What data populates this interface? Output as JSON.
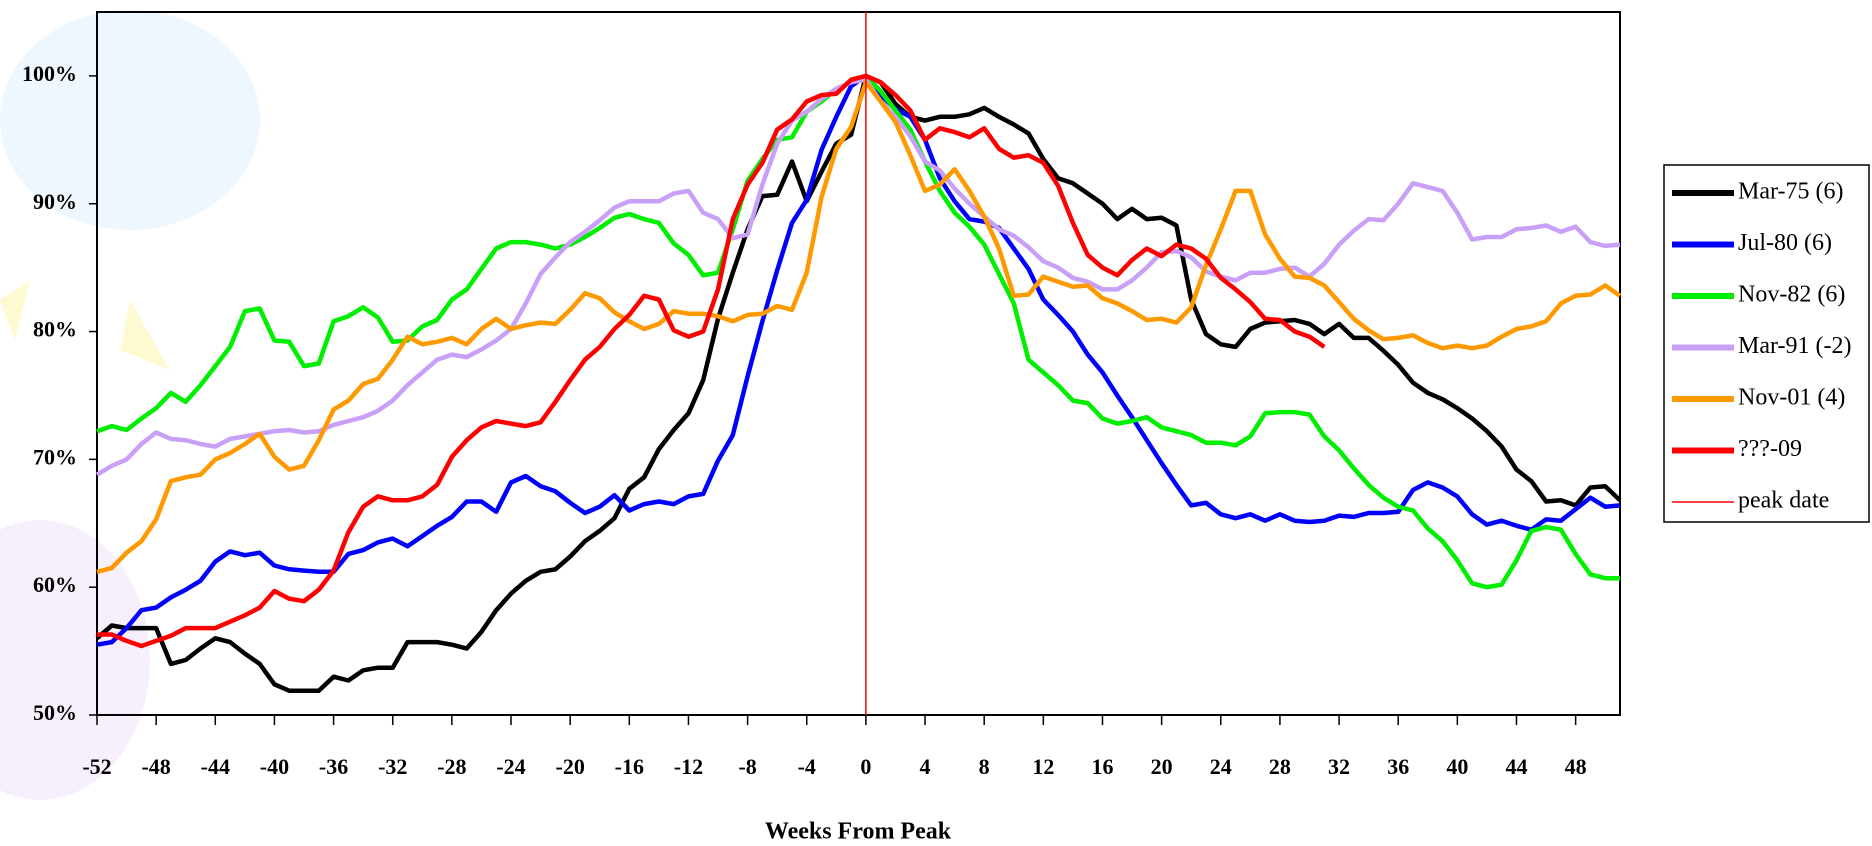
{
  "chart_data": {
    "type": "line",
    "x_label": "Weeks From Peak",
    "x": [
      -52,
      -51,
      -50,
      -49,
      -48,
      -47,
      -46,
      -45,
      -44,
      -43,
      -42,
      -41,
      -40,
      -39,
      -38,
      -37,
      -36,
      -35,
      -34,
      -33,
      -32,
      -31,
      -30,
      -29,
      -28,
      -27,
      -26,
      -25,
      -24,
      -23,
      -22,
      -21,
      -20,
      -19,
      -18,
      -17,
      -16,
      -15,
      -14,
      -13,
      -12,
      -11,
      -10,
      -9,
      -8,
      -7,
      -6,
      -5,
      -4,
      -3,
      -2,
      -1,
      0,
      1,
      2,
      3,
      4,
      5,
      6,
      7,
      8,
      9,
      10,
      11,
      12,
      13,
      14,
      15,
      16,
      17,
      18,
      19,
      20,
      21,
      22,
      23,
      24,
      25,
      26,
      27,
      28,
      29,
      30,
      31,
      32,
      33,
      34,
      35,
      36,
      37,
      38,
      39,
      40,
      41,
      42,
      43,
      44,
      45,
      46,
      47,
      48,
      49,
      50,
      51
    ],
    "xlim": [
      -52,
      51
    ],
    "xticks": [
      -52,
      -48,
      -44,
      -40,
      -36,
      -32,
      -28,
      -24,
      -20,
      -16,
      -12,
      -8,
      -4,
      0,
      4,
      8,
      12,
      16,
      20,
      24,
      28,
      32,
      36,
      40,
      44,
      48
    ],
    "ylim": [
      50,
      105
    ],
    "yticks": [
      {
        "value": 50,
        "label": "50%"
      },
      {
        "value": 60,
        "label": "60%"
      },
      {
        "value": 70,
        "label": "70%"
      },
      {
        "value": 80,
        "label": "80%"
      },
      {
        "value": 90,
        "label": "90%"
      },
      {
        "value": 100,
        "label": "100%"
      }
    ],
    "legend": "right",
    "series": [
      {
        "name": "Mar-75 (6)",
        "color": "#000000",
        "values": [
          56,
          57,
          56.8,
          56.8,
          56.8,
          54,
          54.3,
          55.2,
          56,
          55.7,
          54.8,
          54,
          52.4,
          51.9,
          51.9,
          51.9,
          53,
          52.7,
          53.5,
          53.7,
          53.7,
          55.7,
          55.7,
          55.7,
          55.5,
          55.2,
          56.5,
          58.2,
          59.5,
          60.5,
          61.2,
          61.4,
          62.4,
          63.6,
          64.4,
          65.4,
          67.7,
          68.6,
          70.8,
          72.3,
          73.6,
          76.2,
          81,
          84.6,
          88,
          90.6,
          90.7,
          93.3,
          90.2,
          92.5,
          94.7,
          95.4,
          100,
          99.5,
          97.8,
          96.8,
          96.5,
          96.8,
          96.8,
          97,
          97.5,
          96.8,
          96.2,
          95.5,
          93.5,
          92,
          91.6,
          90.8,
          90,
          88.8,
          89.6,
          88.8,
          88.9,
          88.3,
          82.5,
          79.8,
          79,
          78.8,
          80.2,
          80.7,
          80.8,
          80.9,
          80.6,
          79.8,
          80.6,
          79.5,
          79.5,
          78.5,
          77.4,
          76,
          75.2,
          74.7,
          74,
          73.2,
          72.2,
          71,
          69.2,
          68.3,
          66.7,
          66.8,
          66.4,
          67.8,
          67.9,
          66.8
        ]
      },
      {
        "name": "Jul-80 (6)",
        "color": "#0000ff",
        "values": [
          55.5,
          55.7,
          56.8,
          58.2,
          58.4,
          59.2,
          59.8,
          60.5,
          62,
          62.8,
          62.5,
          62.7,
          61.7,
          61.4,
          61.3,
          61.2,
          61.2,
          62.6,
          62.9,
          63.5,
          63.8,
          63.2,
          64,
          64.8,
          65.5,
          66.7,
          66.7,
          65.9,
          68.2,
          68.7,
          67.9,
          67.5,
          66.6,
          65.8,
          66.3,
          67.2,
          66,
          66.5,
          66.7,
          66.5,
          67.1,
          67.3,
          69.9,
          71.9,
          76.5,
          80.8,
          84.8,
          88.5,
          90.3,
          94.2,
          96.8,
          99.2,
          100,
          98.5,
          97.4,
          96.8,
          95,
          92,
          90.2,
          88.8,
          88.6,
          88.1,
          86.5,
          84.9,
          82.5,
          81.3,
          80,
          78.2,
          76.8,
          75,
          73.3,
          71.5,
          69.7,
          68,
          66.4,
          66.6,
          65.7,
          65.4,
          65.7,
          65.2,
          65.7,
          65.2,
          65.1,
          65.2,
          65.6,
          65.5,
          65.8,
          65.8,
          65.9,
          67.6,
          68.2,
          67.8,
          67.1,
          65.7,
          64.9,
          65.2,
          64.8,
          64.5,
          65.3,
          65.2,
          66.1,
          67,
          66.3,
          66.4
        ]
      },
      {
        "name": "Nov-82 (6)",
        "color": "#00ee00",
        "values": [
          72.2,
          72.6,
          72.3,
          73.2,
          74,
          75.2,
          74.5,
          75.8,
          77.3,
          78.8,
          81.6,
          81.8,
          79.3,
          79.2,
          77.3,
          77.5,
          80.8,
          81.2,
          81.9,
          81.1,
          79.2,
          79.3,
          80.4,
          80.9,
          82.5,
          83.3,
          84.9,
          86.5,
          87,
          87,
          86.8,
          86.5,
          86.8,
          87.4,
          88.1,
          88.9,
          89.2,
          88.8,
          88.5,
          86.9,
          86,
          84.4,
          84.6,
          88,
          91.8,
          93.5,
          95,
          95.2,
          97.2,
          98,
          99,
          99.5,
          100,
          98.8,
          97.3,
          95.8,
          93.3,
          91,
          89.3,
          88.2,
          86.8,
          84.5,
          82.2,
          77.8,
          76.8,
          75.8,
          74.6,
          74.4,
          73.2,
          72.8,
          73,
          73.3,
          72.5,
          72.2,
          71.9,
          71.3,
          71.3,
          71.1,
          71.8,
          73.6,
          73.7,
          73.7,
          73.5,
          71.8,
          70.7,
          69.3,
          68,
          67,
          66.3,
          66,
          64.6,
          63.6,
          62.1,
          60.3,
          60,
          60.2,
          62.1,
          64.4,
          64.7,
          64.5,
          62.6,
          61,
          60.7,
          60.7
        ]
      },
      {
        "name": "Mar-91 (-2)",
        "color": "#c8a0f8",
        "values": [
          68.8,
          69.5,
          70,
          71.2,
          72.1,
          71.6,
          71.5,
          71.2,
          71,
          71.6,
          71.8,
          72,
          72.2,
          72.3,
          72.1,
          72.2,
          72.7,
          73,
          73.3,
          73.8,
          74.6,
          75.8,
          76.8,
          77.8,
          78.2,
          78,
          78.6,
          79.3,
          80.2,
          82.2,
          84.5,
          85.8,
          87,
          87.8,
          88.7,
          89.7,
          90.2,
          90.2,
          90.2,
          90.8,
          91,
          89.3,
          88.8,
          87.3,
          87.6,
          91.5,
          94.7,
          96.5,
          97.2,
          98.2,
          99,
          99.5,
          99.7,
          98,
          96.8,
          95.3,
          93.3,
          92.6,
          91.2,
          90,
          89,
          88,
          87.5,
          86.6,
          85.5,
          85,
          84.2,
          83.9,
          83.3,
          83.3,
          84,
          85,
          86.2,
          86.3,
          85.8,
          84.7,
          84.3,
          84,
          84.6,
          84.6,
          84.9,
          85,
          84.3,
          85.3,
          86.8,
          87.9,
          88.8,
          88.7,
          90,
          91.6,
          91.3,
          91,
          89.3,
          87.2,
          87.4,
          87.4,
          88,
          88.1,
          88.3,
          87.8,
          88.2,
          87,
          86.7,
          86.8
        ]
      },
      {
        "name": "Nov-01 (4)",
        "color": "#ff9900",
        "values": [
          61.2,
          61.5,
          62.7,
          63.6,
          65.3,
          68.3,
          68.6,
          68.8,
          70,
          70.5,
          71.2,
          72,
          70.2,
          69.2,
          69.5,
          71.5,
          73.9,
          74.6,
          75.9,
          76.3,
          77.8,
          79.6,
          79,
          79.2,
          79.5,
          79,
          80.2,
          81,
          80.2,
          80.5,
          80.7,
          80.6,
          81.7,
          83,
          82.6,
          81.5,
          80.8,
          80.2,
          80.6,
          81.6,
          81.4,
          81.4,
          81.2,
          80.8,
          81.3,
          81.4,
          82,
          81.7,
          84.6,
          90.5,
          94.3,
          96,
          99.5,
          98,
          96.4,
          93.8,
          91,
          91.5,
          92.7,
          91,
          89,
          86.5,
          82.8,
          82.9,
          84.3,
          83.9,
          83.5,
          83.6,
          82.6,
          82.2,
          81.6,
          80.9,
          81,
          80.7,
          81.9,
          85.2,
          88,
          91,
          91,
          87.6,
          85.7,
          84.3,
          84.2,
          83.6,
          82.3,
          81,
          80.1,
          79.4,
          79.5,
          79.7,
          79.1,
          78.7,
          78.9,
          78.7,
          78.9,
          79.6,
          80.2,
          80.4,
          80.8,
          82.2,
          82.8,
          82.9,
          83.6,
          82.8
        ]
      },
      {
        "name": "???-09",
        "color": "#ff0000",
        "values": [
          56.3,
          56.3,
          55.8,
          55.4,
          55.8,
          56.2,
          56.8,
          56.8,
          56.8,
          57.3,
          57.8,
          58.4,
          59.7,
          59.1,
          58.9,
          59.8,
          61.3,
          64.3,
          66.3,
          67.1,
          66.8,
          66.8,
          67.1,
          68,
          70.2,
          71.5,
          72.5,
          73,
          72.8,
          72.6,
          72.9,
          74.5,
          76.2,
          77.8,
          78.8,
          80.2,
          81.3,
          82.8,
          82.5,
          80.1,
          79.6,
          80,
          83.3,
          88.8,
          91.5,
          93.2,
          95.8,
          96.6,
          98,
          98.5,
          98.6,
          99.7,
          100,
          99.5,
          98.5,
          97.3,
          95,
          95.9,
          95.6,
          95.2,
          95.9,
          94.3,
          93.6,
          93.8,
          93.2,
          91.4,
          88.5,
          86,
          85,
          84.4,
          85.6,
          86.5,
          85.9,
          86.8,
          86.5,
          85.7,
          84.2,
          83.3,
          82.3,
          81,
          80.9,
          80,
          79.6,
          78.8,
          null,
          null,
          null,
          null,
          null,
          null,
          null,
          null,
          null,
          null,
          null,
          null,
          null,
          null,
          null,
          null,
          null,
          null,
          null,
          null
        ]
      }
    ],
    "vline": {
      "name": "peak date",
      "x": 0,
      "color": "#ff0000"
    }
  }
}
